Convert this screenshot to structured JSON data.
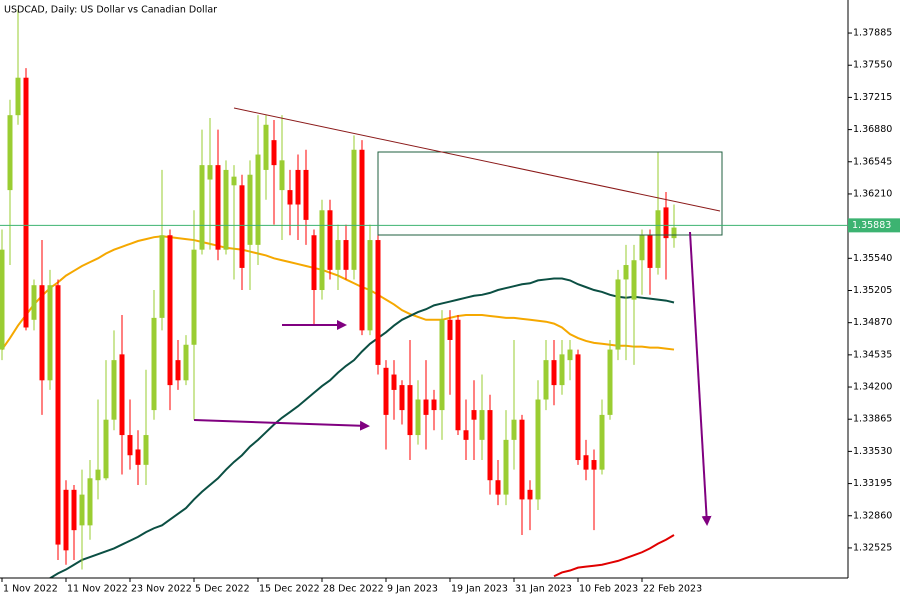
{
  "chart_data": {
    "type": "candlestick",
    "title": "USDCAD, Daily:  US Dollar vs Canadian Dollar",
    "categories": [
      "1 Nov 2022",
      null,
      null,
      null,
      null,
      null,
      null,
      null,
      "11 Nov 2022",
      null,
      null,
      null,
      null,
      null,
      null,
      null,
      "23 Nov 2022",
      null,
      null,
      null,
      null,
      null,
      null,
      null,
      "5 Dec 2022",
      null,
      null,
      null,
      null,
      null,
      null,
      null,
      "15 Dec 2022",
      null,
      null,
      null,
      null,
      null,
      null,
      null,
      "28 Dec 2022",
      null,
      null,
      null,
      null,
      null,
      null,
      null,
      "9 Jan 2023",
      null,
      null,
      null,
      null,
      null,
      null,
      null,
      "19 Jan 2023",
      null,
      null,
      null,
      null,
      null,
      null,
      null,
      "31 Jan 2023",
      null,
      null,
      null,
      null,
      null,
      null,
      null,
      "10 Feb 2023",
      null,
      null,
      null,
      null,
      null,
      null,
      null,
      "22 Feb 2023",
      null,
      null,
      null,
      null
    ],
    "open": [
      1.3459,
      1.3625,
      1.3703,
      1.3742,
      1.349,
      1.3526,
      1.3427,
      1.3526,
      1.3313,
      1.3313,
      1.3276,
      1.3276,
      1.3323,
      1.3325,
      1.3386,
      1.3454,
      1.337,
      1.3355,
      1.3339,
      1.3396,
      1.3492,
      1.3578,
      1.3448,
      1.3427,
      1.3464,
      1.3563,
      1.3636,
      1.3651,
      1.3563,
      1.363,
      1.363,
      1.3568,
      1.3568,
      1.3646,
      1.3677,
      1.3625,
      1.3625,
      1.3646,
      1.3646,
      1.3578,
      1.3521,
      1.3604,
      1.3542,
      1.3573,
      1.3542,
      1.3667,
      1.3479,
      1.3573,
      1.344,
      1.3433,
      1.3422,
      1.3422,
      1.337,
      1.3407,
      1.3407,
      1.3396,
      1.349,
      1.349,
      1.3375,
      1.3396,
      1.3365,
      1.3396,
      1.3323,
      1.3308,
      1.3365,
      1.3386,
      1.3313,
      1.3303,
      1.3407,
      1.3448,
      1.3422,
      1.3448,
      1.3454,
      1.3349,
      1.3344,
      1.3334,
      1.3391,
      1.3459,
      1.3532,
      1.3511,
      1.3552,
      1.3578,
      1.3544,
      1.3607,
      1.3575
    ],
    "high": [
      1.3584,
      1.3719,
      1.3813,
      1.3752,
      1.3532,
      1.3573,
      1.3542,
      1.3532,
      1.3323,
      1.3318,
      1.3334,
      1.3344,
      1.3407,
      1.3448,
      1.3479,
      1.3495,
      1.3407,
      1.3375,
      1.3438,
      1.3521,
      1.3646,
      1.3584,
      1.3469,
      1.3474,
      1.3604,
      1.3688,
      1.37,
      1.3688,
      1.3656,
      1.3651,
      1.3641,
      1.3656,
      1.3703,
      1.3703,
      1.3698,
      1.3703,
      1.3646,
      1.3662,
      1.3667,
      1.3584,
      1.3615,
      1.3615,
      1.3589,
      1.3589,
      1.3682,
      1.3677,
      1.3589,
      1.3578,
      1.3448,
      1.3448,
      1.3427,
      1.3469,
      1.3427,
      1.3448,
      1.3417,
      1.35,
      1.35,
      1.3495,
      1.3407,
      1.3427,
      1.3433,
      1.3412,
      1.3344,
      1.3396,
      1.3469,
      1.3391,
      1.3323,
      1.3427,
      1.3469,
      1.3469,
      1.3469,
      1.3469,
      1.3459,
      1.3365,
      1.3355,
      1.3407,
      1.3469,
      1.3542,
      1.3568,
      1.3568,
      1.3584,
      1.3584,
      1.3665,
      1.3623,
      1.361
    ],
    "low": [
      1.3448,
      1.3547,
      1.3693,
      1.3479,
      1.3479,
      1.3391,
      1.3417,
      1.324,
      1.3235,
      1.324,
      1.323,
      1.3261,
      1.3303,
      1.3323,
      1.3375,
      1.3329,
      1.3334,
      1.3318,
      1.3318,
      1.3386,
      1.3479,
      1.3396,
      1.3417,
      1.3422,
      1.3386,
      1.3558,
      1.3563,
      1.3552,
      1.3558,
      1.3532,
      1.3521,
      1.3521,
      1.3547,
      1.3615,
      1.3589,
      1.3573,
      1.3578,
      1.3573,
      1.3568,
      1.3485,
      1.3511,
      1.3532,
      1.3521,
      1.3532,
      1.3532,
      1.3474,
      1.3474,
      1.3433,
      1.3355,
      1.3386,
      1.3381,
      1.3344,
      1.336,
      1.3355,
      1.3375,
      1.3365,
      1.3412,
      1.337,
      1.3344,
      1.3344,
      1.3344,
      1.3308,
      1.3297,
      1.3297,
      1.3334,
      1.3266,
      1.3271,
      1.3292,
      1.3396,
      1.3401,
      1.3412,
      1.3427,
      1.3339,
      1.3323,
      1.3271,
      1.3329,
      1.3386,
      1.3448,
      1.3448,
      1.3443,
      1.3516,
      1.3516,
      1.3537,
      1.3532,
      1.3565
    ],
    "close": [
      1.3563,
      1.3703,
      1.3742,
      1.3482,
      1.3526,
      1.3427,
      1.3526,
      1.3256,
      1.325,
      1.3271,
      1.3308,
      1.3325,
      1.3334,
      1.3386,
      1.3448,
      1.337,
      1.3349,
      1.3339,
      1.337,
      1.3492,
      1.3578,
      1.3422,
      1.3427,
      1.3464,
      1.3563,
      1.3651,
      1.3651,
      1.3563,
      1.3646,
      1.3639,
      1.3544,
      1.3641,
      1.3662,
      1.3693,
      1.3651,
      1.3656,
      1.361,
      1.361,
      1.3594,
      1.3521,
      1.3604,
      1.3542,
      1.3573,
      1.3542,
      1.3667,
      1.3479,
      1.3573,
      1.3443,
      1.3391,
      1.3417,
      1.3396,
      1.337,
      1.3407,
      1.3391,
      1.3396,
      1.349,
      1.3469,
      1.3375,
      1.3365,
      1.3386,
      1.3396,
      1.3323,
      1.3308,
      1.3365,
      1.3386,
      1.3303,
      1.3303,
      1.3407,
      1.3448,
      1.3422,
      1.3454,
      1.3459,
      1.3344,
      1.3334,
      1.3334,
      1.3391,
      1.3459,
      1.3532,
      1.3547,
      1.3552,
      1.3578,
      1.3544,
      1.3604,
      1.3575,
      1.3586
    ],
    "up_color": "#9acd32",
    "down_color": "#ff0000",
    "series": [
      {
        "color": "#f5a800",
        "values": [
          1.3459,
          1.3471,
          1.3484,
          1.3495,
          1.3506,
          1.3515,
          1.3523,
          1.3529,
          1.3536,
          1.3541,
          1.3546,
          1.355,
          1.3554,
          1.3559,
          1.3563,
          1.3566,
          1.3569,
          1.3572,
          1.3574,
          1.3576,
          1.3577,
          1.3576,
          1.3575,
          1.3574,
          1.3573,
          1.3571,
          1.3569,
          1.3567,
          1.3565,
          1.3564,
          1.3563,
          1.3561,
          1.3559,
          1.3557,
          1.3554,
          1.3552,
          1.355,
          1.3548,
          1.3546,
          1.3544,
          1.3542,
          1.3539,
          1.3536,
          1.3532,
          1.3528,
          1.3524,
          1.3521,
          1.3516,
          1.3511,
          1.3506,
          1.35,
          1.3496,
          1.3493,
          1.349,
          1.349,
          1.349,
          1.3492,
          1.3494,
          1.3495,
          1.3495,
          1.3495,
          1.3494,
          1.3493,
          1.3492,
          1.3492,
          1.3491,
          1.349,
          1.3489,
          1.3488,
          1.3486,
          1.3482,
          1.3475,
          1.3471,
          1.3468,
          1.3466,
          1.3465,
          1.3464,
          1.3463,
          1.3463,
          1.3462,
          1.3462,
          1.3461,
          1.3461,
          1.346,
          1.3459
        ]
      },
      {
        "color": "#0b4f43",
        "values": [
          null,
          null,
          null,
          null,
          null,
          null,
          1.3221,
          1.3226,
          1.323,
          1.3235,
          1.324,
          1.3243,
          1.3246,
          1.3249,
          1.3252,
          1.3256,
          1.326,
          1.3264,
          1.3269,
          1.3273,
          1.3276,
          1.3282,
          1.3288,
          1.3294,
          1.3303,
          1.3311,
          1.3318,
          1.3325,
          1.3334,
          1.3342,
          1.3349,
          1.3358,
          1.3365,
          1.3373,
          1.3381,
          1.3388,
          1.3394,
          1.34,
          1.3407,
          1.3414,
          1.3421,
          1.3427,
          1.3435,
          1.3442,
          1.3448,
          1.3457,
          1.3465,
          1.3471,
          1.3477,
          1.3484,
          1.349,
          1.3494,
          1.3498,
          1.3501,
          1.3505,
          1.3507,
          1.3509,
          1.3511,
          1.3513,
          1.3515,
          1.3516,
          1.3518,
          1.3521,
          1.3523,
          1.3525,
          1.3527,
          1.3528,
          1.3531,
          1.3532,
          1.3533,
          1.3533,
          1.3531,
          1.3527,
          1.3524,
          1.3521,
          1.3519,
          1.3516,
          1.3514,
          1.3513,
          1.3514,
          1.3513,
          1.3512,
          1.3511,
          1.351,
          1.3508
        ]
      },
      {
        "color": "#e00000",
        "values": [
          null,
          null,
          null,
          null,
          null,
          null,
          null,
          null,
          null,
          null,
          null,
          null,
          null,
          null,
          null,
          null,
          null,
          null,
          null,
          null,
          null,
          null,
          null,
          null,
          null,
          null,
          null,
          null,
          null,
          null,
          null,
          null,
          null,
          null,
          null,
          null,
          null,
          null,
          null,
          null,
          null,
          null,
          null,
          null,
          null,
          null,
          null,
          null,
          null,
          null,
          null,
          null,
          null,
          null,
          null,
          null,
          null,
          null,
          null,
          null,
          null,
          null,
          null,
          null,
          null,
          null,
          null,
          null,
          null,
          1.3223,
          1.3227,
          1.3229,
          1.3232,
          1.3233,
          1.3234,
          1.3235,
          1.3237,
          1.3239,
          1.3242,
          1.3245,
          1.3248,
          1.3252,
          1.3257,
          1.3261,
          1.3266
        ]
      }
    ],
    "price_line": 1.35883,
    "price_line_color": "#3cb371",
    "ylim": [
      1.32212,
      1.38229
    ],
    "yticks": [
      1.37885,
      {
        "value": 1.3755,
        "label": "1.37550"
      },
      1.37215,
      {
        "value": 1.3688,
        "label": "1.36880"
      },
      1.36545,
      {
        "value": 1.3621,
        "label": "1.36210"
      },
      {
        "value": 1.3554,
        "label": "1.35540"
      },
      1.35205,
      {
        "value": 1.3487,
        "label": "1.34870"
      },
      1.34535,
      {
        "value": 1.342,
        "label": "1.34200"
      },
      1.33865,
      {
        "value": 1.3353,
        "label": "1.33530"
      },
      1.33195,
      {
        "value": 1.3286,
        "label": "1.32860"
      },
      1.32525
    ],
    "grid": false
  }
}
